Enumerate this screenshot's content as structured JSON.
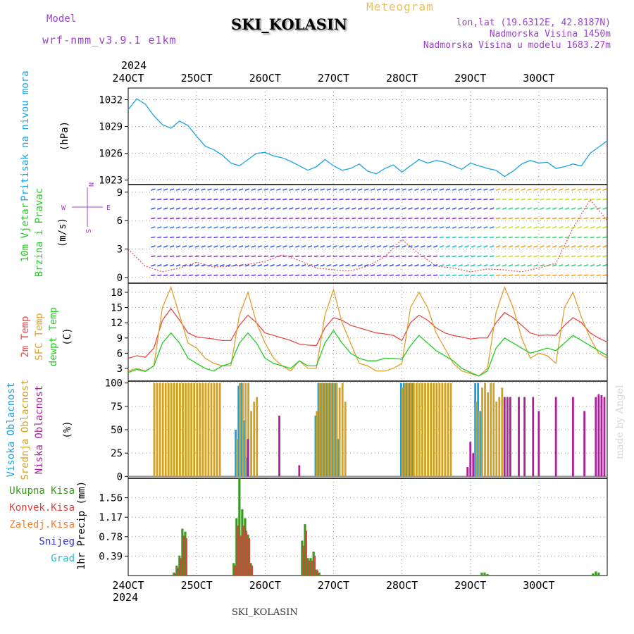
{
  "header": {
    "model_label": "Model",
    "model_name": "wrf-nmm_v3.9.1 e1km",
    "title": "SKI_KOLASIN",
    "meteogram": "Meteogram",
    "lonlat": "lon,lat (19.6312E, 42.8187N)",
    "altitude": "Nadmorska Visina 1450m",
    "model_altitude": "Nadmorska Visina u modelu 1683.27m",
    "year_top": "2024",
    "year_bottom": "2024",
    "footer": "SKI_KOLASIN",
    "watermark": "made by Angel"
  },
  "colors": {
    "pressure": "#1ba3e0",
    "temp2m": "#e64a4a",
    "sfc": "#e0a030",
    "dewpt": "#22cc22",
    "high_cloud": "#1b9ee0",
    "mid_cloud": "#d4a020",
    "low_cloud": "#b01e9a",
    "total_precip": "#3a9a20",
    "conv_precip": "#e04040",
    "frozen_precip": "#f08030",
    "snow": "#3030e0",
    "graupel": "#20c0c0",
    "wind_label": "#22cc22",
    "axis_label_purple": "#a040d0"
  },
  "chart_data": [
    {
      "type": "line",
      "panel": "pressure",
      "label_lines": [
        "Pritisak na nivou mora"
      ],
      "unit": "(hPa)",
      "x_ticks": [
        "24OCT",
        "25OCT",
        "26OCT",
        "27OCT",
        "28OCT",
        "29OCT",
        "30OCT"
      ],
      "y_ticks": [
        1023,
        1026,
        1029,
        1032
      ],
      "ylim": [
        1022.5,
        1033.3
      ],
      "x_hours": [
        0,
        3,
        6,
        9,
        12,
        15,
        18,
        21,
        24,
        27,
        30,
        33,
        36,
        39,
        42,
        45,
        48,
        51,
        54,
        57,
        60,
        63,
        66,
        69,
        72,
        75,
        78,
        81,
        84,
        87,
        90,
        93,
        96,
        99,
        102,
        105,
        108,
        111,
        114,
        117,
        120,
        123,
        126,
        129,
        132,
        135,
        138,
        141,
        144,
        147,
        150,
        153,
        156,
        159,
        162,
        165,
        168
      ],
      "series": [
        {
          "name": "Pritisak na nivou mora",
          "values": [
            1030.9,
            1032.1,
            1031.5,
            1030.2,
            1029.2,
            1028.8,
            1029.6,
            1029.1,
            1027.9,
            1026.8,
            1026.4,
            1025.8,
            1024.9,
            1024.6,
            1025.3,
            1026.0,
            1026.1,
            1025.7,
            1025.5,
            1025.1,
            1024.6,
            1024.1,
            1024.5,
            1025.3,
            1024.6,
            1024.1,
            1024.3,
            1024.8,
            1024.0,
            1023.7,
            1024.3,
            1024.7,
            1023.9,
            1024.6,
            1025.3,
            1024.9,
            1025.2,
            1025.0,
            1024.6,
            1024.2,
            1024.9,
            1024.6,
            1024.3,
            1024.1,
            1023.4,
            1024.0,
            1024.8,
            1025.2,
            1024.9,
            1025.0,
            1024.3,
            1024.5,
            1024.8,
            1024.6,
            1026.0,
            1026.7,
            1027.4
          ]
        }
      ]
    },
    {
      "type": "line",
      "panel": "wind",
      "label_lines": [
        "10m Vjetar",
        "Brzina i Pravac"
      ],
      "unit": "(m/s)",
      "compass": [
        "N",
        "S",
        "W",
        "E"
      ],
      "y_ticks": [
        0,
        3,
        6,
        9
      ],
      "ylim": [
        -0.6,
        9.8
      ],
      "barb_levels": [
        0,
        1,
        2,
        3,
        4,
        5,
        6,
        7,
        8,
        9
      ],
      "x_hours": [
        0,
        6,
        12,
        18,
        24,
        30,
        36,
        42,
        48,
        54,
        60,
        66,
        72,
        78,
        84,
        90,
        96,
        102,
        108,
        114,
        120,
        126,
        132,
        138,
        144,
        150,
        156,
        162,
        168
      ],
      "series": [
        {
          "name": "10m Vjetar",
          "values": [
            3.0,
            1.2,
            0.6,
            1.0,
            1.6,
            1.1,
            1.2,
            1.4,
            1.7,
            2.4,
            1.8,
            1.0,
            0.8,
            0.7,
            1.2,
            2.2,
            4.0,
            2.5,
            1.2,
            1.0,
            0.6,
            0.9,
            0.8,
            0.6,
            1.0,
            1.5,
            5.2,
            8.2,
            6.0
          ]
        }
      ]
    },
    {
      "type": "line",
      "panel": "temperature",
      "label_lines": [
        "2m Temp",
        "SFC Temp",
        "dewpt Temp"
      ],
      "unit": "(C)",
      "y_ticks": [
        3,
        6,
        9,
        12,
        15,
        18
      ],
      "ylim": [
        0.5,
        19.8
      ],
      "x_hours": [
        0,
        3,
        6,
        9,
        12,
        15,
        18,
        21,
        24,
        27,
        30,
        33,
        36,
        39,
        42,
        45,
        48,
        51,
        54,
        57,
        60,
        63,
        66,
        69,
        72,
        75,
        78,
        81,
        84,
        87,
        90,
        93,
        96,
        99,
        102,
        105,
        108,
        111,
        114,
        117,
        120,
        123,
        126,
        129,
        132,
        135,
        138,
        141,
        144,
        147,
        150,
        153,
        156,
        159,
        162,
        165,
        168
      ],
      "series": [
        {
          "name": "2m Temp",
          "values": [
            5,
            5.5,
            5.2,
            7,
            12.5,
            14.8,
            12.5,
            10,
            9.2,
            9,
            8.8,
            8.5,
            8.5,
            11.5,
            13.5,
            12,
            10,
            9.5,
            9,
            8.5,
            7.8,
            7.6,
            7.5,
            11,
            13,
            12.5,
            11.5,
            11,
            10.5,
            10,
            9.8,
            9.5,
            8.5,
            12,
            13.5,
            12.5,
            11,
            10,
            9.5,
            9.2,
            8.8,
            9,
            9,
            12,
            14,
            13,
            11.5,
            10,
            9.5,
            9.6,
            9.5,
            11.5,
            13,
            12,
            10,
            9,
            8.2
          ]
        },
        {
          "name": "SFC Temp",
          "values": [
            2.5,
            3,
            2.5,
            3.5,
            15,
            19,
            13.5,
            8,
            7,
            5,
            4,
            3.5,
            3.5,
            13.5,
            18,
            12,
            8,
            5,
            3.5,
            2.5,
            4.5,
            3,
            3,
            13.5,
            18.5,
            12,
            8,
            4,
            3.5,
            2.5,
            2.5,
            3,
            4,
            15,
            18,
            15,
            10,
            7,
            4,
            2.5,
            2,
            1.5,
            3,
            14,
            19,
            15,
            9,
            5,
            6,
            5.5,
            4,
            15,
            18,
            13,
            9,
            6,
            5
          ]
        },
        {
          "name": "dewpt Temp",
          "values": [
            2.2,
            2.8,
            2.4,
            3.5,
            8,
            10,
            8,
            5,
            4,
            3,
            2.5,
            3.5,
            4,
            8,
            10,
            8,
            5,
            4,
            3.5,
            3,
            4.5,
            3.5,
            3.5,
            8,
            10.5,
            8,
            6,
            5,
            4.5,
            4.5,
            5,
            5,
            4.8,
            7.5,
            9.5,
            8,
            6.5,
            5.5,
            4.5,
            3,
            2.2,
            1.5,
            2.5,
            7,
            9,
            8,
            7,
            6,
            6.5,
            7,
            6.5,
            8,
            9.5,
            8.5,
            7.5,
            6.5,
            5.5
          ]
        }
      ]
    },
    {
      "type": "bar",
      "panel": "cloud",
      "label_lines": [
        "Visoka Oblacnost",
        "Srednja Oblacnost",
        "Niska Oblacnost"
      ],
      "unit": "(%)",
      "y_ticks": [
        0,
        25,
        50,
        75,
        100
      ],
      "ylim": [
        -2,
        102
      ],
      "x_hours": [
        0,
        9,
        10,
        11,
        12,
        13,
        14,
        15,
        16,
        17,
        18,
        19,
        20,
        21,
        22,
        23,
        24,
        25,
        26,
        27,
        28,
        29,
        30,
        31,
        32,
        38,
        39,
        40,
        41,
        42,
        43,
        44,
        45,
        46,
        47,
        48,
        53,
        60,
        63,
        66,
        67,
        68,
        69,
        70,
        71,
        72,
        73,
        74,
        75,
        76,
        77,
        78,
        79,
        86,
        96,
        97,
        98,
        99,
        100,
        101,
        102,
        103,
        104,
        105,
        106,
        107,
        108,
        109,
        110,
        111,
        112,
        113,
        119,
        120,
        121,
        122,
        123,
        124,
        125,
        126,
        127,
        128,
        129,
        130,
        131,
        132,
        133,
        134,
        137,
        139,
        142,
        144,
        150,
        156,
        160,
        164,
        165,
        166,
        167
      ],
      "series": [
        {
          "name": "Visoka Oblacnost",
          "values": [
            0,
            0,
            0,
            0,
            0,
            0,
            0,
            0,
            0,
            0,
            0,
            0,
            0,
            0,
            0,
            0,
            0,
            0,
            0,
            0,
            0,
            0,
            0,
            0,
            0,
            50,
            97,
            100,
            60,
            20,
            0,
            0,
            0,
            0,
            0,
            0,
            0,
            0,
            0,
            65,
            100,
            100,
            100,
            100,
            100,
            100,
            100,
            40,
            0,
            0,
            0,
            0,
            0,
            0,
            100,
            100,
            100,
            100,
            100,
            0,
            0,
            0,
            0,
            0,
            0,
            0,
            0,
            0,
            0,
            0,
            0,
            0,
            0,
            0,
            0,
            100,
            100,
            70,
            0,
            0,
            0,
            0,
            0,
            0,
            0,
            0,
            0,
            0,
            0,
            0,
            0,
            0,
            0,
            0,
            0,
            0,
            0,
            0,
            0
          ]
        },
        {
          "name": "Srednja Oblacnost",
          "values": [
            0,
            100,
            100,
            100,
            100,
            100,
            100,
            100,
            100,
            100,
            100,
            100,
            100,
            100,
            100,
            100,
            100,
            100,
            100,
            100,
            100,
            100,
            100,
            100,
            100,
            40,
            100,
            100,
            100,
            100,
            70,
            80,
            85,
            0,
            0,
            0,
            0,
            0,
            0,
            70,
            100,
            100,
            100,
            100,
            100,
            100,
            100,
            95,
            100,
            80,
            0,
            0,
            0,
            0,
            95,
            100,
            100,
            100,
            100,
            100,
            100,
            100,
            100,
            100,
            100,
            100,
            100,
            100,
            100,
            100,
            100,
            100,
            0,
            0,
            0,
            80,
            70,
            95,
            100,
            90,
            100,
            100,
            80,
            85,
            95,
            0,
            0,
            0,
            0,
            0,
            0,
            0,
            0,
            0,
            0,
            0,
            0,
            0,
            0
          ]
        },
        {
          "name": "Niska Oblacnost",
          "values": [
            0,
            0,
            0,
            0,
            0,
            0,
            0,
            0,
            0,
            0,
            0,
            0,
            0,
            0,
            0,
            0,
            0,
            0,
            0,
            0,
            0,
            0,
            0,
            0,
            0,
            0,
            0,
            0,
            0,
            40,
            0,
            0,
            0,
            0,
            0,
            0,
            65,
            12,
            0,
            0,
            0,
            0,
            0,
            0,
            0,
            0,
            0,
            0,
            0,
            0,
            0,
            0,
            0,
            0,
            0,
            0,
            0,
            0,
            0,
            0,
            0,
            0,
            0,
            0,
            0,
            0,
            0,
            0,
            0,
            0,
            0,
            0,
            10,
            37,
            25,
            0,
            0,
            0,
            0,
            0,
            0,
            0,
            0,
            0,
            0,
            85,
            85,
            85,
            85,
            85,
            85,
            70,
            85,
            85,
            70,
            85,
            88,
            87,
            85
          ]
        }
      ]
    },
    {
      "type": "bar",
      "panel": "precip",
      "label_lines": [
        "Ukupna Kisa",
        "Konvek.Kisa",
        "Zaledj.Kisa",
        "Snijeg",
        "Grad"
      ],
      "unit": "1hr Precip (mm)",
      "y_ticks": [
        0.39,
        0.78,
        1.17,
        1.56
      ],
      "ylim": [
        0,
        1.95
      ],
      "x_ticks": [
        "24OCT",
        "25OCT",
        "26OCT",
        "27OCT",
        "28OCT",
        "29OCT",
        "30OCT"
      ],
      "x_hours": [
        16,
        17,
        18,
        19,
        20,
        37,
        38,
        39,
        40,
        41,
        42,
        43,
        61,
        62,
        63,
        64,
        65,
        66,
        67,
        124,
        125,
        126,
        163,
        164,
        165
      ],
      "series": [
        {
          "name": "Ukupna Kisa",
          "values": [
            0.06,
            0.2,
            0.4,
            0.94,
            0.88,
            0.25,
            1.15,
            1.95,
            1.33,
            1.15,
            0.82,
            0.25,
            0.7,
            1.03,
            0.35,
            0.35,
            0.48,
            0.12,
            0.06,
            0.06,
            0.06,
            0.03,
            0.04,
            0.08,
            0.06
          ]
        },
        {
          "name": "Konvek.Kisa",
          "values": [
            0.04,
            0.15,
            0.35,
            0.8,
            0.75,
            0.2,
            1.0,
            0.8,
            1.0,
            0.9,
            0.75,
            0.2,
            0.6,
            0.9,
            0.3,
            0.3,
            0.4,
            0.1,
            0.0,
            0.0,
            0.0,
            0.0,
            0.0,
            0.0,
            0.0
          ]
        }
      ]
    }
  ]
}
